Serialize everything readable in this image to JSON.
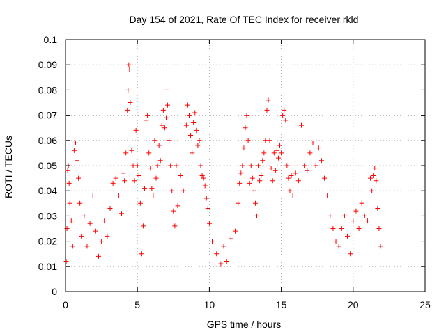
{
  "chart_data": {
    "type": "scatter",
    "title": "Day 154 of 2021, Rate Of TEC Index for receiver rkld",
    "xlabel": "GPS time / hours",
    "ylabel": "ROTI / TECUs",
    "xlim": [
      0,
      25
    ],
    "ylim": [
      0,
      0.1
    ],
    "x_ticks": [
      0,
      5,
      10,
      15,
      20,
      25
    ],
    "x_tick_labels": [
      "0",
      "5",
      "10",
      "15",
      "20",
      "25"
    ],
    "y_ticks": [
      0,
      0.01,
      0.02,
      0.03,
      0.04,
      0.05,
      0.06,
      0.07,
      0.08,
      0.09,
      0.1
    ],
    "y_tick_labels": [
      "0",
      "0.01",
      "0.02",
      "0.03",
      "0.04",
      "0.05",
      "0.06",
      "0.07",
      "0.08",
      "0.09",
      "0.1"
    ],
    "grid": true,
    "marker": "plus",
    "color": "#ff0000",
    "series": [
      {
        "points": [
          [
            0.05,
            0.012
          ],
          [
            0.1,
            0.025
          ],
          [
            0.15,
            0.048
          ],
          [
            0.2,
            0.05
          ],
          [
            0.25,
            0.043
          ],
          [
            0.3,
            0.035
          ],
          [
            0.4,
            0.028
          ],
          [
            0.5,
            0.018
          ],
          [
            0.6,
            0.056
          ],
          [
            0.7,
            0.059
          ],
          [
            0.8,
            0.052
          ],
          [
            0.9,
            0.045
          ],
          [
            1.0,
            0.035
          ],
          [
            1.1,
            0.022
          ],
          [
            1.3,
            0.03
          ],
          [
            1.5,
            0.018
          ],
          [
            1.7,
            0.027
          ],
          [
            1.9,
            0.038
          ],
          [
            2.1,
            0.024
          ],
          [
            2.3,
            0.014
          ],
          [
            2.5,
            0.02
          ],
          [
            2.7,
            0.028
          ],
          [
            2.9,
            0.022
          ],
          [
            3.1,
            0.033
          ],
          [
            3.3,
            0.043
          ],
          [
            3.5,
            0.045
          ],
          [
            3.7,
            0.038
          ],
          [
            3.9,
            0.031
          ],
          [
            4.0,
            0.047
          ],
          [
            4.1,
            0.044
          ],
          [
            4.2,
            0.055
          ],
          [
            4.3,
            0.072
          ],
          [
            4.35,
            0.08
          ],
          [
            4.4,
            0.09
          ],
          [
            4.45,
            0.088
          ],
          [
            4.5,
            0.075
          ],
          [
            4.6,
            0.056
          ],
          [
            4.7,
            0.05
          ],
          [
            4.8,
            0.044
          ],
          [
            4.9,
            0.064
          ],
          [
            5.0,
            0.05
          ],
          [
            5.1,
            0.046
          ],
          [
            5.2,
            0.035
          ],
          [
            5.3,
            0.015
          ],
          [
            5.4,
            0.026
          ],
          [
            5.5,
            0.041
          ],
          [
            5.6,
            0.068
          ],
          [
            5.7,
            0.07
          ],
          [
            5.8,
            0.055
          ],
          [
            5.9,
            0.049
          ],
          [
            6.0,
            0.041
          ],
          [
            6.1,
            0.038
          ],
          [
            6.2,
            0.06
          ],
          [
            6.3,
            0.045
          ],
          [
            6.4,
            0.05
          ],
          [
            6.5,
            0.058
          ],
          [
            6.6,
            0.052
          ],
          [
            6.7,
            0.066
          ],
          [
            6.8,
            0.072
          ],
          [
            6.9,
            0.065
          ],
          [
            7.0,
            0.069
          ],
          [
            7.05,
            0.08
          ],
          [
            7.1,
            0.074
          ],
          [
            7.2,
            0.06
          ],
          [
            7.3,
            0.05
          ],
          [
            7.4,
            0.04
          ],
          [
            7.5,
            0.032
          ],
          [
            7.6,
            0.026
          ],
          [
            7.7,
            0.05
          ],
          [
            7.8,
            0.034
          ],
          [
            8.0,
            0.046
          ],
          [
            8.2,
            0.04
          ],
          [
            8.4,
            0.066
          ],
          [
            8.5,
            0.074
          ],
          [
            8.6,
            0.07
          ],
          [
            8.7,
            0.062
          ],
          [
            8.8,
            0.055
          ],
          [
            8.9,
            0.067
          ],
          [
            9.0,
            0.071
          ],
          [
            9.1,
            0.064
          ],
          [
            9.2,
            0.058
          ],
          [
            9.3,
            0.06
          ],
          [
            9.4,
            0.05
          ],
          [
            9.5,
            0.046
          ],
          [
            9.6,
            0.045
          ],
          [
            9.7,
            0.042
          ],
          [
            9.8,
            0.037
          ],
          [
            9.9,
            0.033
          ],
          [
            10.0,
            0.027
          ],
          [
            10.2,
            0.02
          ],
          [
            10.5,
            0.015
          ],
          [
            10.8,
            0.011
          ],
          [
            11.0,
            0.018
          ],
          [
            11.2,
            0.012
          ],
          [
            11.5,
            0.021
          ],
          [
            11.8,
            0.024
          ],
          [
            12.0,
            0.035
          ],
          [
            12.1,
            0.043
          ],
          [
            12.2,
            0.047
          ],
          [
            12.3,
            0.05
          ],
          [
            12.4,
            0.057
          ],
          [
            12.5,
            0.065
          ],
          [
            12.6,
            0.07
          ],
          [
            12.7,
            0.06
          ],
          [
            12.8,
            0.043
          ],
          [
            12.9,
            0.05
          ],
          [
            13.0,
            0.045
          ],
          [
            13.1,
            0.04
          ],
          [
            13.2,
            0.035
          ],
          [
            13.3,
            0.03
          ],
          [
            13.4,
            0.05
          ],
          [
            13.5,
            0.044
          ],
          [
            13.6,
            0.046
          ],
          [
            13.7,
            0.052
          ],
          [
            13.8,
            0.055
          ],
          [
            13.9,
            0.06
          ],
          [
            14.0,
            0.072
          ],
          [
            14.1,
            0.076
          ],
          [
            14.2,
            0.06
          ],
          [
            14.3,
            0.049
          ],
          [
            14.4,
            0.044
          ],
          [
            14.5,
            0.055
          ],
          [
            14.6,
            0.048
          ],
          [
            14.7,
            0.056
          ],
          [
            14.8,
            0.053
          ],
          [
            14.9,
            0.058
          ],
          [
            15.0,
            0.055
          ],
          [
            15.1,
            0.07
          ],
          [
            15.2,
            0.072
          ],
          [
            15.3,
            0.068
          ],
          [
            15.4,
            0.05
          ],
          [
            15.5,
            0.045
          ],
          [
            15.6,
            0.04
          ],
          [
            15.7,
            0.046
          ],
          [
            15.8,
            0.038
          ],
          [
            16.0,
            0.047
          ],
          [
            16.2,
            0.044
          ],
          [
            16.4,
            0.066
          ],
          [
            16.6,
            0.05
          ],
          [
            16.8,
            0.048
          ],
          [
            17.0,
            0.055
          ],
          [
            17.2,
            0.059
          ],
          [
            17.4,
            0.05
          ],
          [
            17.6,
            0.057
          ],
          [
            17.8,
            0.052
          ],
          [
            18.0,
            0.045
          ],
          [
            18.2,
            0.038
          ],
          [
            18.4,
            0.03
          ],
          [
            18.6,
            0.025
          ],
          [
            18.8,
            0.02
          ],
          [
            19.0,
            0.018
          ],
          [
            19.2,
            0.025
          ],
          [
            19.4,
            0.03
          ],
          [
            19.6,
            0.022
          ],
          [
            19.8,
            0.015
          ],
          [
            20.0,
            0.028
          ],
          [
            20.2,
            0.032
          ],
          [
            20.4,
            0.025
          ],
          [
            20.6,
            0.035
          ],
          [
            20.8,
            0.03
          ],
          [
            21.0,
            0.028
          ],
          [
            21.2,
            0.045
          ],
          [
            21.3,
            0.04
          ],
          [
            21.4,
            0.046
          ],
          [
            21.5,
            0.049
          ],
          [
            21.6,
            0.044
          ],
          [
            21.7,
            0.033
          ],
          [
            21.8,
            0.025
          ],
          [
            21.9,
            0.018
          ]
        ]
      }
    ]
  }
}
